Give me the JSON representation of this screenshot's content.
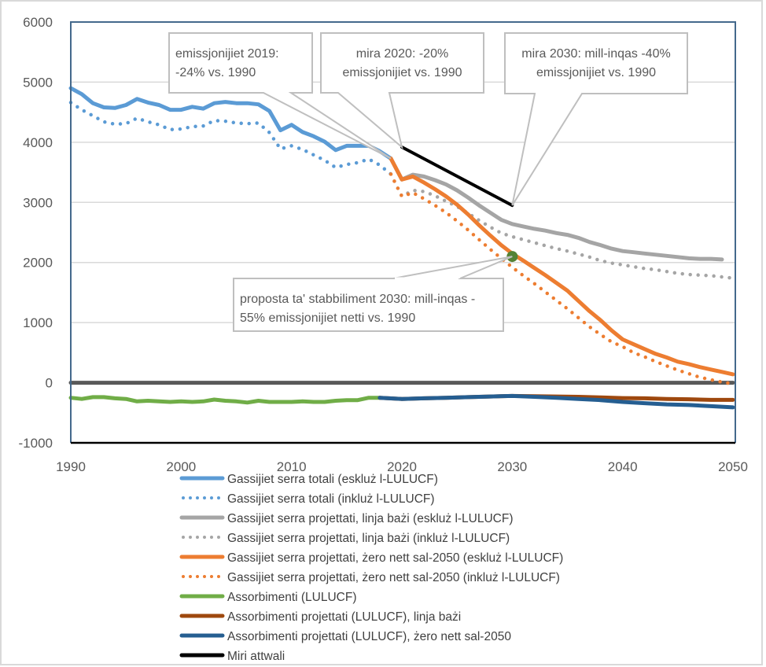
{
  "chart_data": {
    "type": "line",
    "title": "",
    "xlabel": "",
    "ylabel": "",
    "xlim": [
      1990,
      2050
    ],
    "ylim": [
      -1000,
      6000
    ],
    "x_ticks": [
      "1990",
      "2000",
      "2010",
      "2020",
      "2030",
      "2040",
      "2050"
    ],
    "y_ticks": [
      "6000",
      "5000",
      "4000",
      "3000",
      "2000",
      "1000",
      "0",
      "-1000"
    ],
    "grid": "horizontal",
    "legend_position": "bottom",
    "series": [
      {
        "name": "Gassijiet serra totali (eskluż l-LULUCF)",
        "color": "#5b9bd5",
        "style": "solid",
        "x": [
          1990,
          1991,
          1992,
          1993,
          1994,
          1995,
          1996,
          1997,
          1998,
          1999,
          2000,
          2001,
          2002,
          2003,
          2004,
          2005,
          2006,
          2007,
          2008,
          2009,
          2010,
          2011,
          2012,
          2013,
          2014,
          2015,
          2016,
          2017,
          2018,
          2019
        ],
        "values": [
          4900,
          4800,
          4650,
          4580,
          4570,
          4620,
          4720,
          4660,
          4620,
          4540,
          4540,
          4590,
          4560,
          4650,
          4670,
          4650,
          4650,
          4630,
          4520,
          4200,
          4290,
          4170,
          4100,
          4010,
          3870,
          3940,
          3940,
          3940,
          3850,
          3730
        ]
      },
      {
        "name": "Gassijiet serra totali (inkluż l-LULUCF)",
        "color": "#5b9bd5",
        "style": "dotted",
        "x": [
          1990,
          1991,
          1992,
          1993,
          1994,
          1995,
          1996,
          1997,
          1998,
          1999,
          2000,
          2001,
          2002,
          2003,
          2004,
          2005,
          2006,
          2007,
          2008,
          2009,
          2010,
          2011,
          2012,
          2013,
          2014,
          2015,
          2016,
          2017,
          2018,
          2019
        ],
        "values": [
          4660,
          4540,
          4440,
          4340,
          4300,
          4310,
          4400,
          4340,
          4290,
          4210,
          4220,
          4260,
          4270,
          4360,
          4350,
          4320,
          4310,
          4320,
          4160,
          3890,
          3940,
          3880,
          3790,
          3700,
          3580,
          3630,
          3660,
          3720,
          3620,
          3470
        ]
      },
      {
        "name": "Gassijiet serra projettati, linja bażi (eskluż l-LULUCF)",
        "color": "#a5a5a5",
        "style": "solid",
        "x": [
          2019,
          2020,
          2021,
          2022,
          2023,
          2024,
          2025,
          2026,
          2027,
          2028,
          2029,
          2030,
          2031,
          2032,
          2033,
          2034,
          2035,
          2036,
          2037,
          2038,
          2039,
          2040,
          2041,
          2042,
          2043,
          2044,
          2045,
          2046,
          2047,
          2048,
          2049
        ],
        "values": [
          3730,
          3380,
          3460,
          3430,
          3370,
          3300,
          3200,
          3080,
          2950,
          2830,
          2710,
          2640,
          2600,
          2560,
          2530,
          2490,
          2460,
          2410,
          2340,
          2290,
          2230,
          2190,
          2170,
          2150,
          2130,
          2110,
          2090,
          2070,
          2060,
          2060,
          2050
        ]
      },
      {
        "name": "Gassijiet serra projettati, linja bażi (inkluż l-LULUCF)",
        "color": "#a5a5a5",
        "style": "dotted",
        "x": [
          2019,
          2020,
          2021,
          2022,
          2023,
          2024,
          2025,
          2026,
          2027,
          2028,
          2029,
          2030,
          2031,
          2032,
          2033,
          2034,
          2035,
          2036,
          2037,
          2038,
          2039,
          2040,
          2041,
          2042,
          2043,
          2044,
          2045,
          2046,
          2047,
          2048,
          2049,
          2050
        ],
        "values": [
          3470,
          3100,
          3200,
          3180,
          3110,
          3020,
          2930,
          2820,
          2700,
          2590,
          2490,
          2430,
          2380,
          2330,
          2280,
          2230,
          2190,
          2140,
          2090,
          2030,
          1990,
          1960,
          1930,
          1900,
          1880,
          1850,
          1820,
          1800,
          1790,
          1780,
          1760,
          1740
        ]
      },
      {
        "name": "Gassijiet serra projettati, żero nett sal-2050 (eskluż l-LULUCF)",
        "color": "#ed7d31",
        "style": "solid",
        "x": [
          2019,
          2020,
          2021,
          2022,
          2023,
          2024,
          2025,
          2026,
          2027,
          2028,
          2029,
          2030,
          2031,
          2032,
          2033,
          2034,
          2035,
          2036,
          2037,
          2038,
          2039,
          2040,
          2041,
          2042,
          2043,
          2044,
          2045,
          2046,
          2047,
          2048,
          2049,
          2050
        ],
        "values": [
          3730,
          3380,
          3430,
          3330,
          3220,
          3100,
          2960,
          2800,
          2620,
          2450,
          2290,
          2150,
          2030,
          1910,
          1790,
          1660,
          1530,
          1360,
          1190,
          1040,
          870,
          720,
          640,
          560,
          480,
          420,
          350,
          310,
          260,
          220,
          180,
          140
        ]
      },
      {
        "name": "Gassijiet serra projettati, żero nett sal-2050 (inkluż l-LULUCF)",
        "color": "#ed7d31",
        "style": "dotted",
        "x": [
          2019,
          2020,
          2021,
          2022,
          2023,
          2024,
          2025,
          2026,
          2027,
          2028,
          2029,
          2030,
          2031,
          2032,
          2033,
          2034,
          2035,
          2036,
          2037,
          2038,
          2039,
          2040,
          2041,
          2042,
          2043,
          2044,
          2045,
          2046,
          2047,
          2048,
          2049,
          2050
        ],
        "values": [
          3470,
          3100,
          3160,
          3060,
          2950,
          2830,
          2690,
          2540,
          2380,
          2220,
          2070,
          1920,
          1780,
          1650,
          1510,
          1370,
          1230,
          1080,
          930,
          800,
          680,
          600,
          500,
          430,
          350,
          280,
          210,
          150,
          90,
          50,
          10,
          -20
        ]
      },
      {
        "name": "Assorbimenti (LULUCF)",
        "color": "#70ad47",
        "style": "solid",
        "x": [
          1990,
          1991,
          1992,
          1993,
          1994,
          1995,
          1996,
          1997,
          1998,
          1999,
          2000,
          2001,
          2002,
          2003,
          2004,
          2005,
          2006,
          2007,
          2008,
          2009,
          2010,
          2011,
          2012,
          2013,
          2014,
          2015,
          2016,
          2017,
          2018
        ],
        "values": [
          -250,
          -270,
          -240,
          -240,
          -260,
          -270,
          -310,
          -300,
          -310,
          -320,
          -310,
          -320,
          -310,
          -280,
          -300,
          -310,
          -330,
          -300,
          -320,
          -320,
          -320,
          -310,
          -320,
          -320,
          -300,
          -290,
          -290,
          -250,
          -250
        ]
      },
      {
        "name": "Assorbimenti projettati (LULUCF), linja bażi",
        "color": "#9e480e",
        "style": "solid",
        "x": [
          2018,
          2020,
          2022,
          2024,
          2026,
          2028,
          2030,
          2032,
          2034,
          2036,
          2038,
          2040,
          2042,
          2044,
          2046,
          2048,
          2050
        ],
        "values": [
          -250,
          -270,
          -260,
          -250,
          -240,
          -230,
          -220,
          -225,
          -230,
          -235,
          -245,
          -255,
          -260,
          -270,
          -275,
          -285,
          -285
        ]
      },
      {
        "name": "Assorbimenti projettati (LULUCF), żero nett sal-2050",
        "color": "#255e91",
        "style": "solid",
        "x": [
          2018,
          2020,
          2022,
          2024,
          2026,
          2028,
          2030,
          2032,
          2034,
          2036,
          2038,
          2040,
          2042,
          2044,
          2046,
          2048,
          2050
        ],
        "values": [
          -250,
          -270,
          -260,
          -250,
          -240,
          -230,
          -220,
          -235,
          -250,
          -270,
          -290,
          -320,
          -340,
          -360,
          -370,
          -390,
          -410
        ]
      },
      {
        "name": "Miri attwali",
        "color": "#000000",
        "style": "solid",
        "x": [
          2020,
          2030
        ],
        "values": [
          3920,
          2950
        ]
      }
    ],
    "zero_line": {
      "color": "#595959",
      "value": 0
    },
    "markers": [
      {
        "name": "proposta 2030",
        "x": 2030,
        "value": 2100,
        "color": "#548235"
      }
    ],
    "annotations": [
      {
        "id": "ann-2019",
        "lines": [
          "emissjonijiet 2019:",
          "-24% vs. 1990"
        ],
        "align": "left",
        "target_x": 2019,
        "target_value": 3730
      },
      {
        "id": "ann-2020",
        "lines": [
          "mira 2020: -20%",
          "emissjonijiet vs. 1990"
        ],
        "align": "center",
        "target_x": 2020,
        "target_value": 3920
      },
      {
        "id": "ann-2030",
        "lines": [
          "mira 2030: mill-inqas -40%",
          "emissjonijiet vs. 1990"
        ],
        "align": "center",
        "target_x": 2030,
        "target_value": 2950
      },
      {
        "id": "ann-2030-proposal",
        "lines": [
          "proposta ta' stabbiliment 2030: mill-inqas -",
          "55% emissjonijiet netti vs. 1990"
        ],
        "align": "left",
        "target_x": 2030,
        "target_value": 2100
      }
    ]
  }
}
